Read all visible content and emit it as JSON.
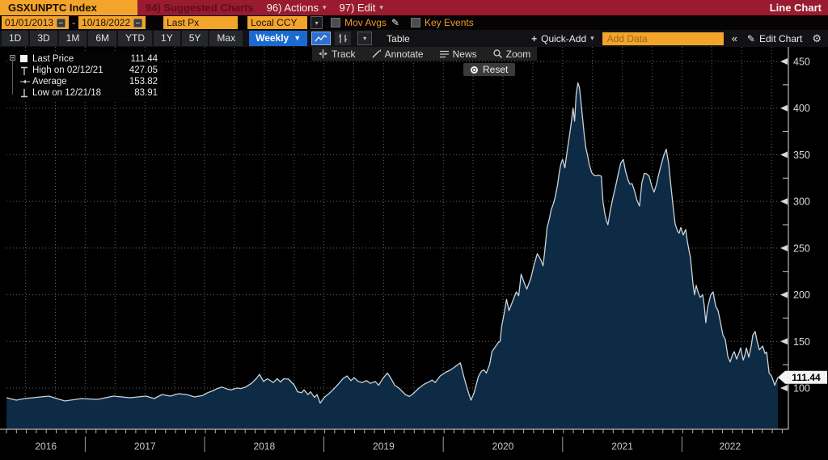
{
  "title_bar": {
    "ticker": "GSXUNPTC Index",
    "suggested": "94) Suggested Charts",
    "actions": "96) Actions",
    "edit": "97) Edit",
    "chart_type": "Line Chart"
  },
  "settings_bar": {
    "date_from": "01/01/2013",
    "date_to": "10/18/2022",
    "price_field": "Last Px",
    "currency": "Local CCY",
    "mov_avgs": "Mov Avgs",
    "key_events": "Key Events"
  },
  "toolbar": {
    "ranges": [
      "1D",
      "3D",
      "1M",
      "6M",
      "YTD",
      "1Y",
      "5Y",
      "Max"
    ],
    "period": "Weekly",
    "table_label": "Table",
    "quick_add": "Quick-Add",
    "add_data_placeholder": "Add Data",
    "collapse": "«",
    "edit_chart": "Edit Chart"
  },
  "chart_tools": {
    "track": "Track",
    "annotate": "Annotate",
    "news": "News",
    "zoom": "Zoom",
    "reset": "Reset"
  },
  "legend": {
    "rows": [
      {
        "marker": "square",
        "label": "Last Price",
        "value": "111.44"
      },
      {
        "marker": "high",
        "label": "High on 02/12/21",
        "value": "427.05"
      },
      {
        "marker": "average",
        "label": "Average",
        "value": "153.82"
      },
      {
        "marker": "low",
        "label": "Low on 12/21/18",
        "value": "83.91"
      }
    ]
  },
  "colors": {
    "amber": "#f3a42b",
    "crimson": "#9a1b2f",
    "blue": "#1a6ad0",
    "area_fill": "#0d2b44",
    "price_line": "#ccd3da",
    "grid": "#75756b",
    "axis": "#dddddd",
    "callout_bg": "#f2f2f2"
  },
  "chart_data": {
    "type": "area",
    "series_name": "Last Price (Weekly)",
    "last_price": 111.44,
    "last_price_label": "111.44",
    "x_axis": {
      "labels": [
        "2016",
        "2017",
        "2018",
        "2019",
        "2020",
        "2021",
        "2022"
      ],
      "year_boundaries": [
        2017,
        2018,
        2019,
        2020,
        2021,
        2022
      ],
      "visible_range": [
        2016.34,
        2022.83
      ]
    },
    "y_axis": {
      "ticks": [
        100,
        150,
        200,
        250,
        300,
        350,
        400,
        450
      ],
      "minor_ticks": [
        125,
        175,
        225,
        275,
        325,
        375,
        425
      ],
      "visible_range": [
        55.8,
        465.7
      ]
    },
    "points": [
      [
        2016.341,
        89.6
      ],
      [
        2016.423,
        87.0
      ],
      [
        2016.491,
        88.7
      ],
      [
        2016.559,
        89.6
      ],
      [
        2016.694,
        91.3
      ],
      [
        2016.83,
        86.1
      ],
      [
        2016.966,
        88.7
      ],
      [
        2017.102,
        87.9
      ],
      [
        2017.238,
        91.3
      ],
      [
        2017.373,
        89.6
      ],
      [
        2017.509,
        91.3
      ],
      [
        2017.577,
        88.7
      ],
      [
        2017.645,
        93.1
      ],
      [
        2017.713,
        91.3
      ],
      [
        2017.781,
        93.9
      ],
      [
        2017.849,
        93.1
      ],
      [
        2017.916,
        90.5
      ],
      [
        2017.984,
        92.0
      ],
      [
        2018.025,
        95.0
      ],
      [
        2018.066,
        97.0
      ],
      [
        2018.107,
        99.5
      ],
      [
        2018.147,
        101.0
      ],
      [
        2018.188,
        99.0
      ],
      [
        2018.222,
        98.0
      ],
      [
        2018.27,
        100.0
      ],
      [
        2018.303,
        99.5
      ],
      [
        2018.344,
        101.0
      ],
      [
        2018.392,
        105.0
      ],
      [
        2018.432,
        110.0
      ],
      [
        2018.46,
        114.7
      ],
      [
        2018.494,
        107.0
      ],
      [
        2018.527,
        110.0
      ],
      [
        2018.575,
        106.0
      ],
      [
        2018.609,
        110.0
      ],
      [
        2018.636,
        106.5
      ],
      [
        2018.663,
        110.0
      ],
      [
        2018.704,
        109.5
      ],
      [
        2018.752,
        103.0
      ],
      [
        2018.779,
        96.0
      ],
      [
        2018.813,
        95.0
      ],
      [
        2018.833,
        98.0
      ],
      [
        2018.867,
        93.0
      ],
      [
        2018.887,
        96.0
      ],
      [
        2018.921,
        90.0
      ],
      [
        2018.942,
        93.0
      ],
      [
        2018.969,
        83.91
      ],
      [
        2019.003,
        90.0
      ],
      [
        2019.05,
        95.0
      ],
      [
        2019.105,
        102.0
      ],
      [
        2019.159,
        110.0
      ],
      [
        2019.193,
        113.0
      ],
      [
        2019.227,
        108.0
      ],
      [
        2019.254,
        111.0
      ],
      [
        2019.288,
        107.0
      ],
      [
        2019.322,
        106.0
      ],
      [
        2019.356,
        108.0
      ],
      [
        2019.39,
        105.0
      ],
      [
        2019.43,
        107.0
      ],
      [
        2019.458,
        103.0
      ],
      [
        2019.498,
        111.0
      ],
      [
        2019.532,
        116.0
      ],
      [
        2019.559,
        111.0
      ],
      [
        2019.593,
        103.0
      ],
      [
        2019.627,
        100.0
      ],
      [
        2019.682,
        93.0
      ],
      [
        2019.716,
        91.0
      ],
      [
        2019.743,
        93.5
      ],
      [
        2019.797,
        100.0
      ],
      [
        2019.838,
        104.0
      ],
      [
        2019.885,
        107.0
      ],
      [
        2019.906,
        108.5
      ],
      [
        2019.933,
        106.0
      ],
      [
        2019.974,
        113.0
      ],
      [
        2020.021,
        117.0
      ],
      [
        2020.055,
        119.0
      ],
      [
        2020.089,
        122.0
      ],
      [
        2020.143,
        127.0
      ],
      [
        2020.177,
        110.0
      ],
      [
        2020.211,
        95.0
      ],
      [
        2020.232,
        87.0
      ],
      [
        2020.259,
        95.0
      ],
      [
        2020.293,
        112.0
      ],
      [
        2020.32,
        118.0
      ],
      [
        2020.34,
        119.5
      ],
      [
        2020.36,
        116.0
      ],
      [
        2020.388,
        125.0
      ],
      [
        2020.408,
        139.0
      ],
      [
        2020.435,
        144.0
      ],
      [
        2020.462,
        149.0
      ],
      [
        2020.476,
        150.0
      ],
      [
        2020.489,
        166.0
      ],
      [
        2020.51,
        180.0
      ],
      [
        2020.53,
        195.0
      ],
      [
        2020.551,
        183.0
      ],
      [
        2020.578,
        192.0
      ],
      [
        2020.612,
        203.0
      ],
      [
        2020.632,
        199.0
      ],
      [
        2020.652,
        222.0
      ],
      [
        2020.68,
        212.0
      ],
      [
        2020.7,
        206.0
      ],
      [
        2020.734,
        218.0
      ],
      [
        2020.761,
        232.0
      ],
      [
        2020.788,
        244.0
      ],
      [
        2020.815,
        238.0
      ],
      [
        2020.836,
        231.0
      ],
      [
        2020.849,
        245.0
      ],
      [
        2020.87,
        272.0
      ],
      [
        2020.89,
        282.0
      ],
      [
        2020.904,
        291.0
      ],
      [
        2020.924,
        298.0
      ],
      [
        2020.938,
        305.0
      ],
      [
        2020.958,
        318.0
      ],
      [
        2020.971,
        330.0
      ],
      [
        2020.985,
        340.0
      ],
      [
        2020.999,
        345.0
      ],
      [
        2021.019,
        336.0
      ],
      [
        2021.039,
        355.0
      ],
      [
        2021.06,
        373.0
      ],
      [
        2021.073,
        385.0
      ],
      [
        2021.087,
        400.0
      ],
      [
        2021.1,
        386.0
      ],
      [
        2021.114,
        415.0
      ],
      [
        2021.128,
        427.05
      ],
      [
        2021.141,
        422.0
      ],
      [
        2021.155,
        405.0
      ],
      [
        2021.168,
        388.0
      ],
      [
        2021.182,
        370.0
      ],
      [
        2021.195,
        357.0
      ],
      [
        2021.209,
        349.0
      ],
      [
        2021.223,
        340.0
      ],
      [
        2021.243,
        331.0
      ],
      [
        2021.263,
        328.0
      ],
      [
        2021.284,
        327.5
      ],
      [
        2021.304,
        328.0
      ],
      [
        2021.324,
        327.0
      ],
      [
        2021.338,
        300.0
      ],
      [
        2021.352,
        288.0
      ],
      [
        2021.365,
        280.0
      ],
      [
        2021.379,
        275.0
      ],
      [
        2021.399,
        290.0
      ],
      [
        2021.42,
        303.0
      ],
      [
        2021.447,
        318.0
      ],
      [
        2021.467,
        330.0
      ],
      [
        2021.487,
        341.0
      ],
      [
        2021.508,
        345.0
      ],
      [
        2021.528,
        332.0
      ],
      [
        2021.549,
        323.0
      ],
      [
        2021.562,
        318.5
      ],
      [
        2021.582,
        319.0
      ],
      [
        2021.603,
        311.0
      ],
      [
        2021.623,
        301.0
      ],
      [
        2021.644,
        295.0
      ],
      [
        2021.664,
        320.0
      ],
      [
        2021.684,
        330.0
      ],
      [
        2021.705,
        329.5
      ],
      [
        2021.725,
        327.0
      ],
      [
        2021.745,
        317.0
      ],
      [
        2021.766,
        310.0
      ],
      [
        2021.786,
        318.0
      ],
      [
        2021.807,
        330.0
      ],
      [
        2021.827,
        340.0
      ],
      [
        2021.847,
        349.0
      ],
      [
        2021.868,
        356.0
      ],
      [
        2021.888,
        341.0
      ],
      [
        2021.908,
        316.0
      ],
      [
        2021.929,
        291.0
      ],
      [
        2021.942,
        276.0
      ],
      [
        2021.963,
        268.0
      ],
      [
        2021.976,
        266.0
      ],
      [
        2021.99,
        272.0
      ],
      [
        2022.01,
        264.0
      ],
      [
        2022.031,
        270.0
      ],
      [
        2022.044,
        258.0
      ],
      [
        2022.058,
        248.0
      ],
      [
        2022.071,
        240.0
      ],
      [
        2022.092,
        212.0
      ],
      [
        2022.105,
        200.0
      ],
      [
        2022.119,
        210.0
      ],
      [
        2022.132,
        204.0
      ],
      [
        2022.153,
        197.0
      ],
      [
        2022.173,
        200.0
      ],
      [
        2022.187,
        188.0
      ],
      [
        2022.2,
        170.0
      ],
      [
        2022.214,
        186.0
      ],
      [
        2022.241,
        200.0
      ],
      [
        2022.261,
        203.0
      ],
      [
        2022.282,
        188.0
      ],
      [
        2022.302,
        183.0
      ],
      [
        2022.322,
        171.0
      ],
      [
        2022.343,
        157.0
      ],
      [
        2022.363,
        152.0
      ],
      [
        2022.384,
        134.0
      ],
      [
        2022.404,
        128.0
      ],
      [
        2022.424,
        136.0
      ],
      [
        2022.438,
        139.0
      ],
      [
        2022.458,
        131.0
      ],
      [
        2022.479,
        138.0
      ],
      [
        2022.492,
        143.0
      ],
      [
        2022.513,
        130.0
      ],
      [
        2022.526,
        135.0
      ],
      [
        2022.54,
        143.0
      ],
      [
        2022.56,
        133.0
      ],
      [
        2022.58,
        145.0
      ],
      [
        2022.594,
        157.0
      ],
      [
        2022.614,
        160.5
      ],
      [
        2022.628,
        151.0
      ],
      [
        2022.648,
        141.0
      ],
      [
        2022.662,
        143.0
      ],
      [
        2022.676,
        145.0
      ],
      [
        2022.696,
        137.0
      ],
      [
        2022.709,
        138.5
      ],
      [
        2022.73,
        116.0
      ],
      [
        2022.75,
        113.0
      ],
      [
        2022.764,
        108.0
      ],
      [
        2022.777,
        103.0
      ],
      [
        2022.804,
        111.44
      ]
    ]
  }
}
